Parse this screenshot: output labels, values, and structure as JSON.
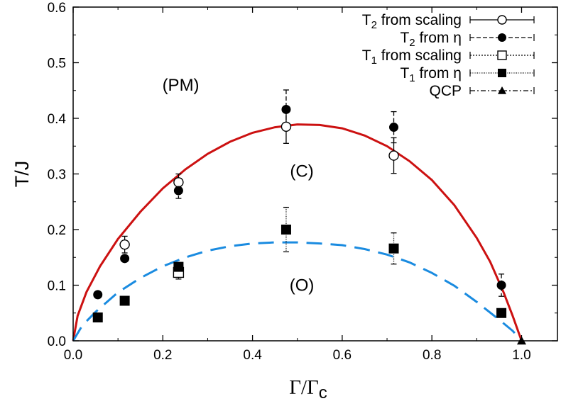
{
  "chart_data": {
    "type": "scatter",
    "xlabel": "Γ/Γ",
    "xlabel_sub": "c",
    "ylabel": "T/J",
    "xlim": [
      0,
      1.08
    ],
    "ylim": [
      0,
      0.6
    ],
    "x_ticks": [
      0.0,
      0.2,
      0.4,
      0.6,
      0.8,
      1.0
    ],
    "x_tick_labels": [
      "0.0",
      "0.2",
      "0.4",
      "0.6",
      "0.8",
      "1.0"
    ],
    "y_ticks": [
      0.0,
      0.1,
      0.2,
      0.3,
      0.4,
      0.5,
      0.6
    ],
    "y_tick_labels": [
      "0.0",
      "0.1",
      "0.2",
      "0.3",
      "0.4",
      "0.5",
      "0.6"
    ],
    "legend_position": "top-right",
    "colors": {
      "axis": "#000000",
      "T2_curve": "#cc1111",
      "T1_curve": "#1a8be0"
    },
    "series": [
      {
        "key": "t2_scaling",
        "name": "T",
        "name_sub": "2",
        "name_rest": " from scaling",
        "marker": "open-circle",
        "line": "solid",
        "points": [
          {
            "x": 0.115,
            "y": 0.173,
            "err": 0.015
          },
          {
            "x": 0.235,
            "y": 0.285,
            "err": 0.015
          },
          {
            "x": 0.475,
            "y": 0.385,
            "err": 0.03
          },
          {
            "x": 0.715,
            "y": 0.333,
            "err": 0.032
          }
        ]
      },
      {
        "key": "t2_eta",
        "name": "T",
        "name_sub": "2",
        "name_rest": " from η",
        "marker": "filled-circle",
        "line": "dashed",
        "points": [
          {
            "x": 0.055,
            "y": 0.083,
            "err": 0.0
          },
          {
            "x": 0.115,
            "y": 0.148,
            "err": 0.0
          },
          {
            "x": 0.235,
            "y": 0.27,
            "err": 0.014
          },
          {
            "x": 0.475,
            "y": 0.416,
            "err": 0.035
          },
          {
            "x": 0.715,
            "y": 0.384,
            "err": 0.028
          },
          {
            "x": 0.955,
            "y": 0.1,
            "err": 0.02
          }
        ]
      },
      {
        "key": "t1_scaling",
        "name": "T",
        "name_sub": "1",
        "name_rest": " from scaling",
        "marker": "open-square",
        "line": "dotted",
        "points": [
          {
            "x": 0.235,
            "y": 0.123,
            "err": 0.012
          }
        ]
      },
      {
        "key": "t1_eta",
        "name": "T",
        "name_sub": "1",
        "name_rest": " from η",
        "marker": "filled-square",
        "line": "fine-dotted",
        "points": [
          {
            "x": 0.055,
            "y": 0.042,
            "err": 0.0
          },
          {
            "x": 0.115,
            "y": 0.072,
            "err": 0.0
          },
          {
            "x": 0.235,
            "y": 0.133,
            "err": 0.0
          },
          {
            "x": 0.475,
            "y": 0.2,
            "err": 0.04
          },
          {
            "x": 0.715,
            "y": 0.166,
            "err": 0.028
          },
          {
            "x": 0.955,
            "y": 0.05,
            "err": 0.0
          }
        ]
      },
      {
        "key": "qcp",
        "name": "QCP",
        "name_sub": "",
        "name_rest": "",
        "marker": "filled-triangle",
        "line": "dash-dot",
        "points": [
          {
            "x": 1.0,
            "y": 0.0,
            "err": 0.0
          }
        ]
      }
    ],
    "curves": [
      {
        "key": "t2_fit",
        "style": "solid",
        "points": [
          [
            0.0,
            0.0
          ],
          [
            0.01,
            0.045
          ],
          [
            0.03,
            0.088
          ],
          [
            0.06,
            0.134
          ],
          [
            0.1,
            0.183
          ],
          [
            0.15,
            0.232
          ],
          [
            0.2,
            0.274
          ],
          [
            0.25,
            0.308
          ],
          [
            0.3,
            0.336
          ],
          [
            0.35,
            0.358
          ],
          [
            0.4,
            0.374
          ],
          [
            0.45,
            0.384
          ],
          [
            0.5,
            0.389
          ],
          [
            0.55,
            0.388
          ],
          [
            0.6,
            0.382
          ],
          [
            0.65,
            0.369
          ],
          [
            0.7,
            0.35
          ],
          [
            0.75,
            0.323
          ],
          [
            0.8,
            0.289
          ],
          [
            0.85,
            0.244
          ],
          [
            0.9,
            0.185
          ],
          [
            0.93,
            0.142
          ],
          [
            0.96,
            0.087
          ],
          [
            0.98,
            0.045
          ],
          [
            1.0,
            0.0
          ]
        ]
      },
      {
        "key": "t1_fit",
        "style": "dashed",
        "points": [
          [
            0.0,
            0.0
          ],
          [
            0.02,
            0.027
          ],
          [
            0.05,
            0.052
          ],
          [
            0.1,
            0.087
          ],
          [
            0.15,
            0.113
          ],
          [
            0.2,
            0.134
          ],
          [
            0.25,
            0.15
          ],
          [
            0.3,
            0.162
          ],
          [
            0.35,
            0.17
          ],
          [
            0.4,
            0.175
          ],
          [
            0.45,
            0.177
          ],
          [
            0.5,
            0.177
          ],
          [
            0.55,
            0.175
          ],
          [
            0.6,
            0.172
          ],
          [
            0.65,
            0.165
          ],
          [
            0.7,
            0.155
          ],
          [
            0.75,
            0.141
          ],
          [
            0.8,
            0.122
          ],
          [
            0.85,
            0.099
          ],
          [
            0.9,
            0.07
          ],
          [
            0.95,
            0.038
          ],
          [
            0.98,
            0.018
          ],
          [
            1.0,
            0.0
          ]
        ]
      }
    ],
    "annotations": [
      {
        "key": "pm",
        "text": "(PM)",
        "x": 0.24,
        "y": 0.45
      },
      {
        "key": "c",
        "text": "(C)",
        "x": 0.51,
        "y": 0.295
      },
      {
        "key": "o",
        "text": "(O)",
        "x": 0.51,
        "y": 0.09
      }
    ]
  }
}
